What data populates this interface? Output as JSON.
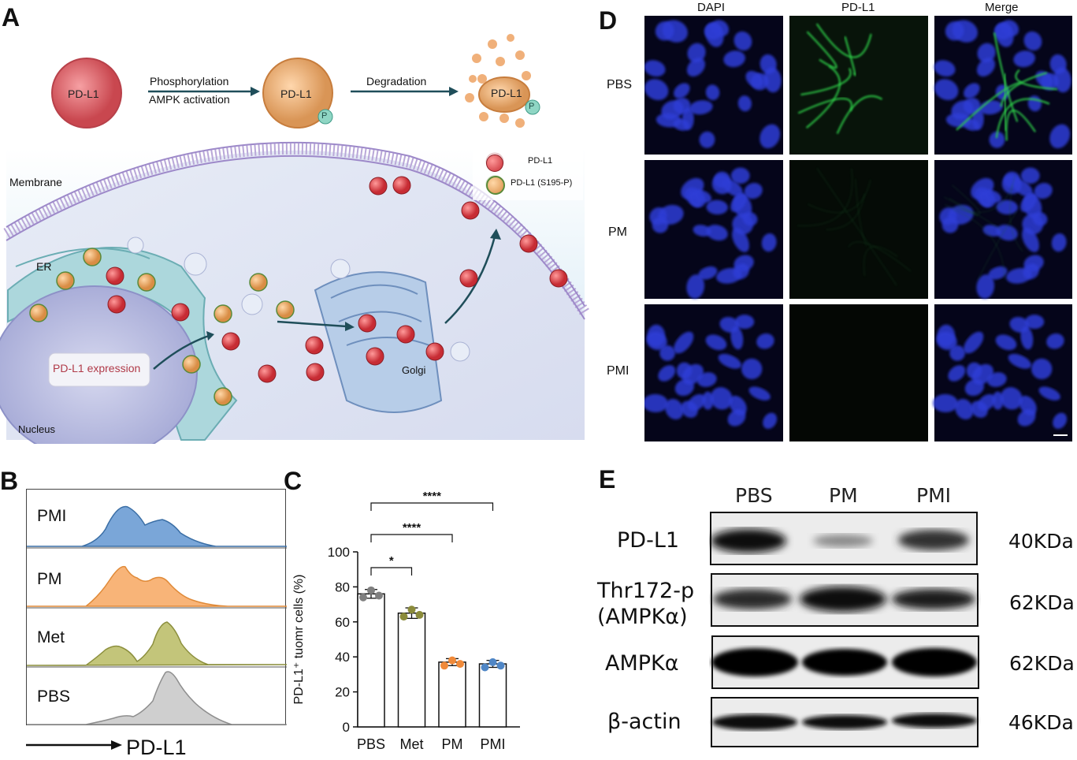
{
  "panels": {
    "A": "A",
    "B": "B",
    "C": "C",
    "D": "D",
    "E": "E"
  },
  "panelA": {
    "top_pdl1_1": "PD-L1",
    "top_pdl1_2": "PD-L1",
    "top_pdl1_3": "PD-L1",
    "phospho_badge_1": "P",
    "phospho_badge_2": "P",
    "arrow1_top": "Phosphorylation",
    "arrow1_bottom": "AMPK activation",
    "arrow2_top": "Degradation",
    "membrane": "Membrane",
    "er": "ER",
    "golgi": "Golgi",
    "nucleus": "Nucleus",
    "expression": "PD-L1 expression",
    "legend_pdl1": "PD-L1",
    "legend_pdl1_p": "PD-L1 (S195-P)",
    "colors": {
      "pdl1": "#d9414a",
      "pdl1_p": "#f0b07a",
      "cell_bg": "#dfe6f3",
      "er": "#9ccfd5",
      "golgi": "#a9c3e0"
    }
  },
  "panelB": {
    "rows": [
      "PMI",
      "PM",
      "Met",
      "PBS"
    ],
    "colors": [
      "#6c9bd2",
      "#f5ae6b",
      "#bcbf6d",
      "#c8c8c8"
    ],
    "axis_label": "PD-L1"
  },
  "chart_data": {
    "type": "bar",
    "categories": [
      "PBS",
      "Met",
      "PM",
      "PMI"
    ],
    "values": [
      76,
      65,
      37,
      36
    ],
    "errors": [
      2.5,
      3,
      2,
      2
    ],
    "points": [
      [
        74,
        78,
        75
      ],
      [
        63,
        67,
        64
      ],
      [
        35,
        38,
        36
      ],
      [
        34,
        37,
        35
      ]
    ],
    "point_colors": [
      "#7f7f7f",
      "#8b8b3a",
      "#f08a3a",
      "#4f86c6"
    ],
    "ylabel": "PD-L1⁺ tuomr cells (%)",
    "ylim": [
      0,
      100
    ],
    "yticks": [
      0,
      20,
      40,
      60,
      80,
      100
    ],
    "significance": [
      {
        "from": "PBS",
        "to": "Met",
        "label": "*"
      },
      {
        "from": "PBS",
        "to": "PM",
        "label": "****"
      },
      {
        "from": "PBS",
        "to": "PMI",
        "label": "****"
      }
    ]
  },
  "panelD": {
    "columns": [
      "DAPI",
      "PD-L1",
      "Merge"
    ],
    "rows": [
      "PBS",
      "PM",
      "PMI"
    ]
  },
  "panelE": {
    "columns": [
      "PBS",
      "PM",
      "PMI"
    ],
    "rows": [
      {
        "label": "PD-L1",
        "size": "40KDa"
      },
      {
        "label": "Thr172-p\n(AMPKα)",
        "size": "62KDa"
      },
      {
        "label": "AMPKα",
        "size": "62KDa"
      },
      {
        "label": "β-actin",
        "size": "46KDa"
      }
    ]
  }
}
